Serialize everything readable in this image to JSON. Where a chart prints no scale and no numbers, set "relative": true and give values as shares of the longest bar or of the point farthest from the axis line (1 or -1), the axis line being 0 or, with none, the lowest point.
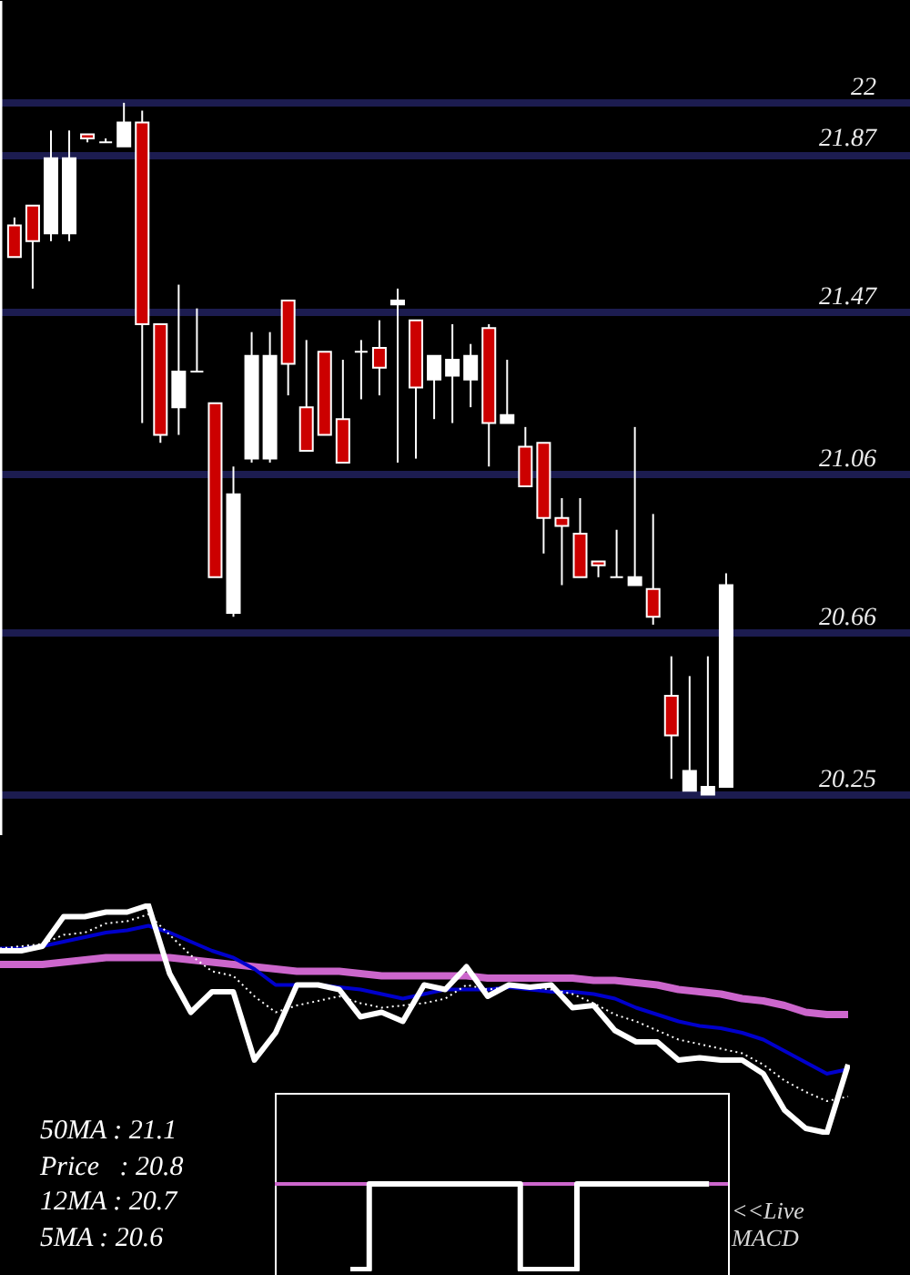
{
  "chart_data": [
    {
      "type": "candlestick",
      "categories": [
        null,
        null,
        null,
        null,
        null,
        null,
        null,
        null,
        null,
        null,
        null,
        null,
        null,
        null,
        null,
        null,
        null,
        null,
        null,
        null,
        null,
        null,
        null,
        null,
        null,
        null,
        null,
        null,
        null,
        null,
        null,
        null,
        null,
        null,
        null,
        null,
        null,
        null,
        null,
        null
      ],
      "ohlc": [
        [
          21.69,
          21.71,
          21.61,
          21.61
        ],
        [
          21.74,
          21.74,
          21.53,
          21.65
        ],
        [
          21.67,
          21.93,
          21.65,
          21.86
        ],
        [
          21.67,
          21.93,
          21.65,
          21.86
        ],
        [
          21.92,
          21.92,
          21.9,
          21.91
        ],
        [
          21.9,
          21.91,
          21.9,
          21.9
        ],
        [
          21.89,
          22.0,
          21.89,
          21.95
        ],
        [
          21.95,
          21.98,
          21.19,
          21.44
        ],
        [
          21.44,
          21.44,
          21.14,
          21.16
        ],
        [
          21.23,
          21.54,
          21.16,
          21.32
        ],
        [
          21.32,
          21.48,
          21.32,
          21.32
        ],
        [
          21.24,
          21.24,
          20.8,
          20.8
        ],
        [
          20.71,
          21.08,
          20.7,
          21.01
        ],
        [
          21.1,
          21.42,
          21.09,
          21.36
        ],
        [
          21.1,
          21.42,
          21.09,
          21.36
        ],
        [
          21.5,
          21.5,
          21.26,
          21.34
        ],
        [
          21.23,
          21.4,
          21.12,
          21.12
        ],
        [
          21.37,
          21.37,
          21.16,
          21.16
        ],
        [
          21.2,
          21.35,
          21.09,
          21.09
        ],
        [
          21.37,
          21.4,
          21.25,
          21.37
        ],
        [
          21.38,
          21.45,
          21.26,
          21.33
        ],
        [
          21.49,
          21.53,
          21.09,
          21.5
        ],
        [
          21.45,
          21.45,
          21.1,
          21.28
        ],
        [
          21.3,
          21.36,
          21.2,
          21.36
        ],
        [
          21.31,
          21.44,
          21.19,
          21.35
        ],
        [
          21.3,
          21.39,
          21.23,
          21.36
        ],
        [
          21.43,
          21.44,
          21.08,
          21.19
        ],
        [
          21.19,
          21.35,
          21.19,
          21.21
        ],
        [
          21.13,
          21.18,
          21.03,
          21.03
        ],
        [
          21.14,
          21.14,
          20.86,
          20.95
        ],
        [
          20.95,
          21.0,
          20.78,
          20.93
        ],
        [
          20.91,
          21.0,
          20.8,
          20.8
        ],
        [
          20.84,
          20.84,
          20.8,
          20.83
        ],
        [
          20.8,
          20.92,
          20.8,
          20.8
        ],
        [
          20.78,
          21.18,
          20.78,
          20.8
        ],
        [
          20.77,
          20.96,
          20.68,
          20.7
        ],
        [
          20.5,
          20.6,
          20.29,
          20.4
        ],
        [
          20.26,
          20.55,
          20.26,
          20.31
        ],
        [
          20.25,
          20.6,
          20.25,
          20.27
        ],
        [
          20.27,
          20.81,
          20.27,
          20.78
        ]
      ],
      "colors": [
        "#cc0000",
        "#cc0000",
        "#ffffff",
        "#ffffff",
        "#cc0000",
        "#ffffff",
        "#ffffff",
        "#cc0000",
        "#cc0000",
        "#ffffff",
        "#ffffff",
        "#cc0000",
        "#ffffff",
        "#ffffff",
        "#ffffff",
        "#cc0000",
        "#cc0000",
        "#cc0000",
        "#cc0000",
        "#ffffff",
        "#cc0000",
        "#ffffff",
        "#cc0000",
        "#ffffff",
        "#ffffff",
        "#ffffff",
        "#cc0000",
        "#ffffff",
        "#cc0000",
        "#cc0000",
        "#cc0000",
        "#cc0000",
        "#cc0000",
        "#ffffff",
        "#ffffff",
        "#cc0000",
        "#cc0000",
        "#ffffff",
        "#ffffff",
        "#ffffff"
      ],
      "ylim": [
        20.15,
        22.26
      ],
      "yticks": [
        20.25,
        20.66,
        21.06,
        21.47,
        21.87,
        22
      ],
      "grid": "y",
      "tick_labels": "y"
    },
    {
      "type": "line",
      "relative": true,
      "categories": [
        null,
        null,
        null,
        null,
        null,
        null,
        null,
        null,
        null,
        null,
        null,
        null,
        null,
        null,
        null,
        null,
        null,
        null,
        null,
        null,
        null,
        null,
        null,
        null,
        null,
        null,
        null,
        null,
        null,
        null,
        null,
        null,
        null,
        null,
        null,
        null,
        null,
        null,
        null,
        null,
        null
      ],
      "series": [
        {
          "color": "#cc66cc",
          "values": [
            0.74,
            0.74,
            0.74,
            0.75,
            0.76,
            0.77,
            0.77,
            0.77,
            0.77,
            0.76,
            0.75,
            0.74,
            0.73,
            0.72,
            0.71,
            0.71,
            0.71,
            0.7,
            0.69,
            0.69,
            0.69,
            0.69,
            0.69,
            0.68,
            0.68,
            0.68,
            0.68,
            0.68,
            0.67,
            0.67,
            0.66,
            0.65,
            0.63,
            0.62,
            0.61,
            0.59,
            0.58,
            0.56,
            0.53,
            0.52,
            0.52
          ]
        },
        {
          "color": "#0000cc",
          "values": [
            0.81,
            0.81,
            0.82,
            0.84,
            0.86,
            0.88,
            0.89,
            0.91,
            0.88,
            0.84,
            0.8,
            0.77,
            0.72,
            0.65,
            0.65,
            0.65,
            0.64,
            0.63,
            0.61,
            0.59,
            0.61,
            0.63,
            0.63,
            0.63,
            0.64,
            0.63,
            0.62,
            0.62,
            0.61,
            0.59,
            0.55,
            0.52,
            0.49,
            0.47,
            0.46,
            0.44,
            0.41,
            0.36,
            0.31,
            0.26,
            0.28
          ]
        },
        {
          "color": "#ffffff",
          "line_style": "dotted",
          "values": [
            0.81,
            0.82,
            0.83,
            0.87,
            0.88,
            0.92,
            0.93,
            0.96,
            0.87,
            0.78,
            0.71,
            0.69,
            0.6,
            0.53,
            0.56,
            0.58,
            0.6,
            0.57,
            0.55,
            0.56,
            0.57,
            0.59,
            0.65,
            0.63,
            0.64,
            0.64,
            0.63,
            0.61,
            0.57,
            0.52,
            0.49,
            0.45,
            0.41,
            0.39,
            0.37,
            0.35,
            0.3,
            0.23,
            0.18,
            0.14,
            0.16
          ]
        },
        {
          "color": "#ffffff",
          "values": [
            0.8,
            0.8,
            0.82,
            0.95,
            0.95,
            0.97,
            0.97,
            1.0,
            0.7,
            0.53,
            0.62,
            0.62,
            0.32,
            0.44,
            0.65,
            0.65,
            0.63,
            0.51,
            0.53,
            0.49,
            0.65,
            0.63,
            0.73,
            0.6,
            0.65,
            0.64,
            0.65,
            0.55,
            0.56,
            0.45,
            0.4,
            0.4,
            0.32,
            0.33,
            0.32,
            0.32,
            0.26,
            0.1,
            0.02,
            0,
            0.3
          ]
        }
      ],
      "tick_labels": false,
      "annotations": [
        "50MA : 21.1",
        "Price   : 20.8",
        "12MA : 20.7",
        "5MA : 20.6"
      ]
    },
    {
      "type": "step",
      "relative": true,
      "categories": [
        null,
        null,
        null,
        null,
        null,
        null,
        null,
        null,
        null,
        null,
        null,
        null,
        null,
        null,
        null,
        null,
        null,
        null,
        null,
        null,
        null,
        null,
        null,
        null,
        null
      ],
      "series": [
        {
          "color": "#cc66cc",
          "values": [
            1,
            1,
            1,
            1,
            1,
            1,
            null,
            null,
            null,
            null,
            null,
            null,
            null,
            1,
            1,
            1,
            1,
            null,
            null,
            null,
            null,
            null,
            null,
            1,
            1
          ]
        },
        {
          "color": "#ffffff",
          "values": [
            null,
            null,
            null,
            null,
            0,
            1,
            1,
            1,
            1,
            1,
            1,
            1,
            1,
            0,
            0,
            0,
            1,
            1,
            1,
            1,
            1,
            1,
            1,
            1,
            null
          ]
        }
      ],
      "tick_labels": false,
      "annotations": [
        "<<Live MACD"
      ]
    }
  ]
}
